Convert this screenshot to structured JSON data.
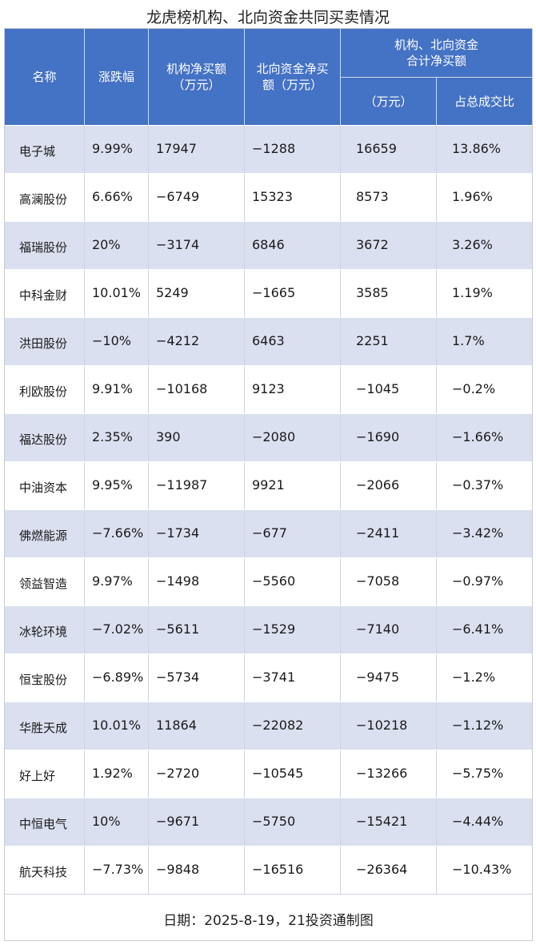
{
  "title": "龙虎榜机构、北向资金共同买卖情况",
  "headers": {
    "name": "名称",
    "change": "涨跌幅",
    "inst": "机构净买额\n（万元）",
    "north": "北向资金净买\n额（万元）",
    "combined_top": "机构、北向资金\n合计净买额",
    "combined_sub1": "（万元）",
    "combined_sub2": "占总成交比"
  },
  "chart_data": {
    "type": "table",
    "columns": [
      "名称",
      "涨跌幅",
      "机构净买额（万元）",
      "北向资金净买额（万元）",
      "机构、北向资金合计净买额（万元）",
      "机构、北向资金合计净买额 占总成交比"
    ],
    "rows": [
      [
        "电子城",
        "9.99%",
        "17947",
        "−1288",
        "16659",
        "13.86%"
      ],
      [
        "高澜股份",
        "6.66%",
        "−6749",
        "15323",
        "8573",
        "1.96%"
      ],
      [
        "福瑞股份",
        "20%",
        "−3174",
        "6846",
        "3672",
        "3.26%"
      ],
      [
        "中科金财",
        "10.01%",
        "5249",
        "−1665",
        "3585",
        "1.19%"
      ],
      [
        "洪田股份",
        "−10%",
        "−4212",
        "6463",
        "2251",
        "1.7%"
      ],
      [
        "利欧股份",
        "9.91%",
        "−10168",
        "9123",
        "−1045",
        "−0.2%"
      ],
      [
        "福达股份",
        "2.35%",
        "390",
        "−2080",
        "−1690",
        "−1.66%"
      ],
      [
        "中油资本",
        "9.95%",
        "−11987",
        "9921",
        "−2066",
        "−0.37%"
      ],
      [
        "佛燃能源",
        "−7.66%",
        "−1734",
        "−677",
        "−2411",
        "−3.42%"
      ],
      [
        "领益智造",
        "9.97%",
        "−1498",
        "−5560",
        "−7058",
        "−0.97%"
      ],
      [
        "冰轮环境",
        "−7.02%",
        "−5611",
        "−1529",
        "−7140",
        "−6.41%"
      ],
      [
        "恒宝股份",
        "−6.89%",
        "−5734",
        "−3741",
        "−9475",
        "−1.2%"
      ],
      [
        "华胜天成",
        "10.01%",
        "11864",
        "−22082",
        "−10218",
        "−1.12%"
      ],
      [
        "好上好",
        "1.92%",
        "−2720",
        "−10545",
        "−13266",
        "−5.75%"
      ],
      [
        "中恒电气",
        "10%",
        "−9671",
        "−5750",
        "−15421",
        "−4.44%"
      ],
      [
        "航天科技",
        "−7.73%",
        "−9848",
        "−16516",
        "−26364",
        "−10.43%"
      ]
    ]
  },
  "footer": "日期：2025-8-19，21投资通制图",
  "colors": {
    "header_bg": "#4472c4",
    "stripe": "#dbe0f0"
  }
}
